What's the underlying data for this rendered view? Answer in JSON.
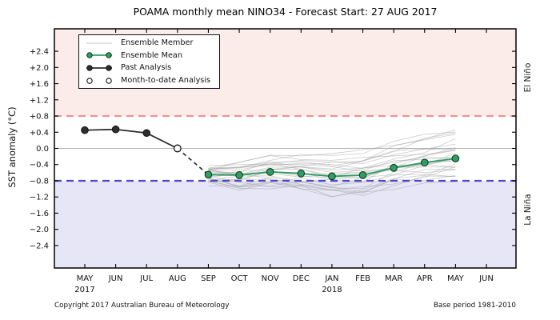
{
  "title": "POAMA monthly mean NINO34 - Forecast Start: 27 AUG 2017",
  "y_axis": {
    "label": "SST anomaly (°C)",
    "tick_labels": [
      "+2.4",
      "+2.0",
      "+1.6",
      "+1.2",
      "+0.8",
      "+0.4",
      "0.0",
      "−0.4",
      "−0.8",
      "−1.2",
      "−1.6",
      "−2.0",
      "−2.4"
    ],
    "tick_values": [
      2.4,
      2.0,
      1.6,
      1.2,
      0.8,
      0.4,
      0.0,
      -0.4,
      -0.8,
      -1.2,
      -1.6,
      -2.0,
      -2.4
    ]
  },
  "regions": {
    "el_nino": {
      "label": "El Niño",
      "threshold": 0.8
    },
    "la_nina": {
      "label": "La Niña",
      "threshold": -0.8
    }
  },
  "legend": {
    "items": [
      {
        "label": "Ensemble Member"
      },
      {
        "label": "Ensemble Mean"
      },
      {
        "label": "Past Analysis"
      },
      {
        "label": "Month-to-date Analysis"
      }
    ]
  },
  "footer": {
    "left": "Copyright 2017 Australian Bureau of Meteorology",
    "right": "Base period 1981-2010"
  },
  "colors": {
    "el_nino_band": "#fbecea",
    "la_nina_band": "#e6e6f6",
    "el_nino_line": "#f4908a",
    "la_nina_line": "#4a4ac8",
    "zero_line": "#b3b3b3",
    "ensemble_member": "#9b9b9b",
    "ensemble_mean": "#2e9e62",
    "ensemble_mean_marker_edge": "#123b24",
    "past_analysis": "#2e2e2e",
    "axis": "#000000"
  },
  "chart_data": {
    "type": "line",
    "title": "POAMA monthly mean NINO34 - Forecast Start: 27 AUG 2017",
    "xlabel": "",
    "ylabel": "SST anomaly (°C)",
    "ylim": [
      -2.955,
      2.955
    ],
    "grid": false,
    "legend_position": "upper-left",
    "x_categories": [
      "MAY",
      "JUN",
      "JUL",
      "AUG",
      "SEP",
      "OCT",
      "NOV",
      "DEC",
      "JAN",
      "FEB",
      "MAR",
      "APR",
      "MAY",
      "JUN"
    ],
    "x_year_labels": [
      {
        "month_index": 0,
        "label": "2017"
      },
      {
        "month_index": 8,
        "label": "2018"
      }
    ],
    "thresholds": {
      "el_nino": 0.8,
      "la_nina": -0.8
    },
    "past_analysis": {
      "month_indices": [
        0,
        1,
        2
      ],
      "values": [
        0.45,
        0.47,
        0.38
      ]
    },
    "month_to_date_analysis": {
      "month_indices": [
        3
      ],
      "values": [
        0.0
      ]
    },
    "ensemble_mean": {
      "month_indices": [
        4,
        5,
        6,
        7,
        8,
        9,
        10,
        11,
        12
      ],
      "values": [
        -0.65,
        -0.66,
        -0.58,
        -0.62,
        -0.69,
        -0.66,
        -0.48,
        -0.35,
        -0.25
      ]
    },
    "ensemble_members": {
      "note": "approx 26 member traces from SEP 2017 to MAY 2018, spread -1.1 to +0.55; value_i = mean_i + s*(1-t) + e*t + m*sin(pi*t) + w*sin(p+1.9*i), t=i/8",
      "month_indices": [
        4,
        5,
        6,
        7,
        8,
        9,
        10,
        11,
        12
      ],
      "params_format": [
        "s_start_offset",
        "e_end_offset",
        "m_mid_offset",
        "w_wiggle_amp",
        "p_phase"
      ],
      "params": [
        [
          0.1,
          -0.6,
          -0.08,
          0.06,
          0.0
        ],
        [
          -0.1,
          -0.4,
          -0.15,
          0.09,
          1.0
        ],
        [
          0.05,
          -0.4,
          0.1,
          0.05,
          2.0
        ],
        [
          -0.2,
          -0.35,
          -0.12,
          0.11,
          3.0
        ],
        [
          0.15,
          -0.3,
          0.15,
          0.06,
          4.0
        ],
        [
          -0.05,
          -0.28,
          -0.18,
          0.08,
          5.0
        ],
        [
          0.2,
          -0.22,
          0.2,
          0.05,
          0.5
        ],
        [
          -0.25,
          -0.18,
          -0.15,
          0.1,
          1.5
        ],
        [
          0.08,
          -0.15,
          0.05,
          0.07,
          2.5
        ],
        [
          -0.12,
          -0.12,
          -0.3,
          0.09,
          3.5
        ],
        [
          0.18,
          -0.08,
          0.12,
          0.05,
          4.5
        ],
        [
          -0.08,
          -0.05,
          -0.05,
          0.08,
          5.5
        ],
        [
          0.12,
          0.0,
          0.18,
          0.06,
          0.8
        ],
        [
          -0.18,
          0.05,
          -0.22,
          0.1,
          1.8
        ],
        [
          0.03,
          0.08,
          0.08,
          0.05,
          2.8
        ],
        [
          -0.22,
          0.12,
          -0.12,
          0.09,
          3.8
        ],
        [
          0.22,
          0.15,
          0.22,
          0.06,
          4.8
        ],
        [
          -0.03,
          0.2,
          -0.08,
          0.08,
          5.8
        ],
        [
          0.1,
          0.25,
          0.15,
          0.05,
          1.2
        ],
        [
          -0.15,
          0.3,
          -0.25,
          0.1,
          2.2
        ],
        [
          0.05,
          0.38,
          0.1,
          0.06,
          3.2
        ],
        [
          -0.1,
          0.45,
          -0.15,
          0.08,
          4.2
        ],
        [
          0.15,
          0.55,
          0.2,
          0.05,
          5.2
        ],
        [
          -0.05,
          0.62,
          0.0,
          0.07,
          0.3
        ],
        [
          0.08,
          0.7,
          0.12,
          0.05,
          1.7
        ],
        [
          -0.18,
          0.75,
          -0.05,
          0.06,
          2.9
        ]
      ]
    }
  }
}
